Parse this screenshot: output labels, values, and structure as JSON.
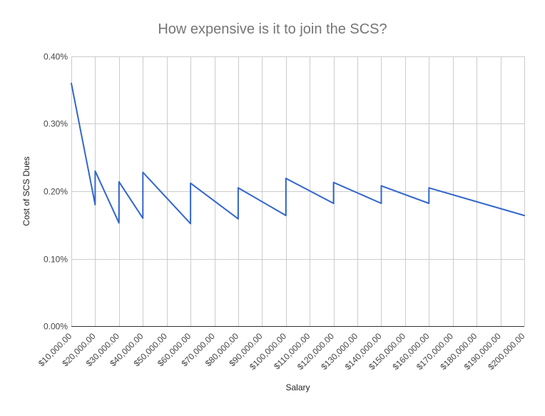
{
  "chart_data": {
    "type": "line",
    "title": "How expensive is it to join the SCS?",
    "xlabel": "Salary",
    "ylabel": "Cost of SCS Dues",
    "ylim": [
      0,
      0.4
    ],
    "yticks": [
      "0.00%",
      "0.10%",
      "0.20%",
      "0.30%",
      "0.40%"
    ],
    "xlim": [
      10000,
      200000
    ],
    "xticks": [
      "$10,000.00",
      "$20,000.00",
      "$30,000.00",
      "$40,000.00",
      "$50,000.00",
      "$60,000.00",
      "$70,000.00",
      "$80,000.00",
      "$90,000.00",
      "$100,000.00",
      "$110,000.00",
      "$120,000.00",
      "$130,000.00",
      "$140,000.00",
      "$150,000.00",
      "$160,000.00",
      "$170,000.00",
      "$180,000.00",
      "$190,000.00",
      "$200,000.00"
    ],
    "grid": true,
    "legend": "none",
    "line_color": "#3366cc",
    "series": [
      {
        "x": [
          10000,
          20000,
          20000,
          30000,
          30000,
          40000,
          40000,
          60000,
          60000,
          80000,
          80000,
          100000,
          100000,
          120000,
          120000,
          140000,
          140000,
          160000,
          160000,
          200000
        ],
        "values": [
          0.36,
          0.18,
          0.23,
          0.153,
          0.214,
          0.16,
          0.228,
          0.152,
          0.212,
          0.159,
          0.205,
          0.164,
          0.219,
          0.182,
          0.213,
          0.182,
          0.208,
          0.182,
          0.205,
          0.164
        ]
      }
    ]
  }
}
